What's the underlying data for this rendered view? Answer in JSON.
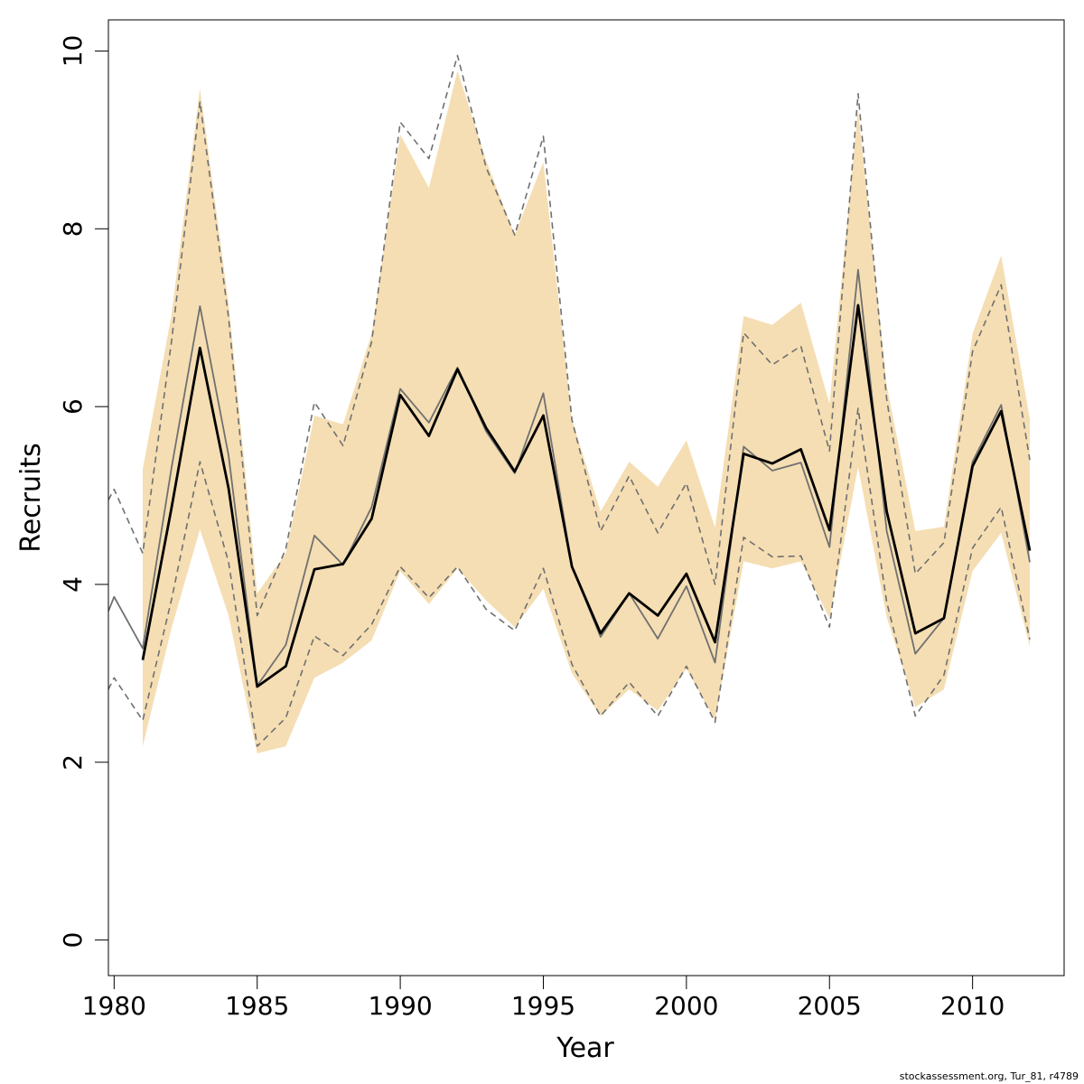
{
  "chart_data": {
    "type": "line",
    "xlabel": "Year",
    "ylabel": "Recruits",
    "xlim": [
      1979.8,
      2013.2
    ],
    "ylim": [
      -0.4,
      10.35
    ],
    "x_ticks": [
      1980,
      1985,
      1990,
      1995,
      2000,
      2005,
      2010
    ],
    "y_ticks": [
      0,
      2,
      4,
      6,
      8,
      10
    ],
    "grid": false,
    "legend": "none",
    "colors": {
      "band": "#f5deb3",
      "main": "#000000",
      "previous": "#707070",
      "dashed": "#707070"
    },
    "band": {
      "x": [
        1981,
        1982,
        1983,
        1984,
        1985,
        1986,
        1987,
        1988,
        1989,
        1990,
        1991,
        1992,
        1993,
        1994,
        1995,
        1996,
        1997,
        1998,
        1999,
        2000,
        2001,
        2002,
        2003,
        2004,
        2005,
        2006,
        2007,
        2008,
        2009,
        2010,
        2011,
        2012
      ],
      "lower": [
        2.18,
        3.5,
        4.62,
        3.65,
        2.1,
        2.18,
        2.95,
        3.12,
        3.37,
        4.15,
        3.78,
        4.18,
        3.82,
        3.52,
        3.95,
        3.0,
        2.52,
        2.82,
        2.58,
        3.05,
        2.47,
        4.26,
        4.18,
        4.26,
        3.62,
        5.32,
        3.63,
        2.62,
        2.82,
        4.15,
        4.58,
        3.3
      ],
      "upper": [
        5.3,
        7.02,
        9.58,
        7.16,
        3.9,
        4.35,
        5.9,
        5.8,
        6.82,
        9.06,
        8.46,
        9.78,
        8.77,
        7.93,
        8.75,
        5.85,
        4.82,
        5.38,
        5.1,
        5.62,
        4.64,
        7.02,
        6.92,
        7.17,
        6.03,
        9.34,
        6.24,
        4.6,
        4.65,
        6.82,
        7.7,
        5.86
      ]
    },
    "series": [
      {
        "role": "estimate",
        "x": [
          1981,
          1982,
          1983,
          1984,
          1985,
          1986,
          1987,
          1988,
          1989,
          1990,
          1991,
          1992,
          1993,
          1994,
          1995,
          1996,
          1997,
          1998,
          1999,
          2000,
          2001,
          2002,
          2003,
          2004,
          2005,
          2006,
          2007,
          2008,
          2009,
          2010,
          2011,
          2012
        ],
        "values": [
          3.15,
          4.85,
          6.66,
          5.08,
          2.85,
          3.08,
          4.17,
          4.23,
          4.74,
          6.13,
          5.67,
          6.42,
          5.76,
          5.27,
          5.9,
          4.2,
          3.45,
          3.9,
          3.65,
          4.12,
          3.35,
          5.47,
          5.36,
          5.52,
          4.61,
          7.14,
          4.82,
          3.45,
          3.62,
          5.33,
          5.95,
          4.38
        ]
      },
      {
        "role": "previous-estimate",
        "x": [
          1979.8,
          1980,
          1981,
          1982,
          1983,
          1984,
          1985,
          1986,
          1987,
          1988,
          1989,
          1990,
          1991,
          1992,
          1993,
          1994,
          1995,
          1996,
          1997,
          1998,
          1999,
          2000,
          2001,
          2002,
          2003,
          2004,
          2005,
          2006,
          2007,
          2008,
          2009,
          2010,
          2011,
          2012
        ],
        "values": [
          3.7,
          3.86,
          3.28,
          5.3,
          7.13,
          5.45,
          2.86,
          3.32,
          4.55,
          4.22,
          4.87,
          6.2,
          5.82,
          6.44,
          5.72,
          5.25,
          6.15,
          4.2,
          3.41,
          3.9,
          3.39,
          3.98,
          3.12,
          5.55,
          5.28,
          5.37,
          4.42,
          7.54,
          4.6,
          3.22,
          3.62,
          5.38,
          6.02,
          4.25
        ]
      },
      {
        "role": "previous-upper",
        "x": [
          1979.8,
          1980,
          1981,
          1982,
          1983,
          1984,
          1985,
          1986,
          1987,
          1988,
          1989,
          1990,
          1991,
          1992,
          1993,
          1994,
          1995,
          1996,
          1997,
          1998,
          1999,
          2000,
          2001,
          2002,
          2003,
          2004,
          2005,
          2006,
          2007,
          2008,
          2009,
          2010,
          2011,
          2012
        ],
        "values": [
          4.95,
          5.07,
          4.35,
          6.72,
          9.43,
          7.0,
          3.65,
          4.4,
          6.05,
          5.56,
          6.73,
          9.2,
          8.79,
          9.95,
          8.69,
          7.93,
          9.04,
          5.85,
          4.6,
          5.22,
          4.58,
          5.14,
          4.0,
          6.83,
          6.47,
          6.68,
          5.5,
          9.52,
          6.08,
          4.12,
          4.47,
          6.62,
          7.37,
          5.4
        ]
      },
      {
        "role": "previous-lower",
        "x": [
          1979.8,
          1980,
          1981,
          1982,
          1983,
          1984,
          1985,
          1986,
          1987,
          1988,
          1989,
          1990,
          1991,
          1992,
          1993,
          1994,
          1995,
          1996,
          1997,
          1998,
          1999,
          2000,
          2001,
          2002,
          2003,
          2004,
          2005,
          2006,
          2007,
          2008,
          2009,
          2010,
          2011,
          2012
        ],
        "values": [
          2.82,
          2.95,
          2.47,
          3.82,
          5.38,
          4.25,
          2.18,
          2.5,
          3.42,
          3.2,
          3.55,
          4.2,
          3.85,
          4.2,
          3.72,
          3.48,
          4.18,
          3.1,
          2.52,
          2.9,
          2.52,
          3.08,
          2.45,
          4.53,
          4.31,
          4.32,
          3.52,
          5.98,
          3.8,
          2.52,
          2.98,
          4.41,
          4.87,
          3.38
        ]
      }
    ]
  },
  "credit": "stockassessment.org, Tur_81, r4789"
}
